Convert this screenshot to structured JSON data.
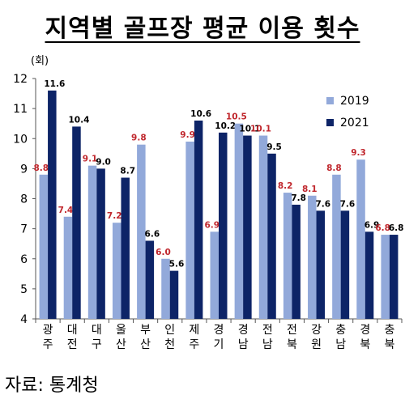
{
  "title": "지역별 골프장 평균 이용 횟수",
  "source": "자료: 통계청",
  "colors": {
    "s2019": "#92A9DA",
    "s2021": "#0D2467",
    "label2019": "#C0272D",
    "label2021": "#000000"
  },
  "chart_data": {
    "type": "bar",
    "unit_label": "(회)",
    "categories": [
      [
        "광",
        "주"
      ],
      [
        "대",
        "전"
      ],
      [
        "대",
        "구"
      ],
      [
        "울",
        "산"
      ],
      [
        "부",
        "산"
      ],
      [
        "인",
        "천"
      ],
      [
        "제",
        "주"
      ],
      [
        "경",
        "기"
      ],
      [
        "경",
        "남"
      ],
      [
        "전",
        "남"
      ],
      [
        "전",
        "북"
      ],
      [
        "강",
        "원"
      ],
      [
        "충",
        "남"
      ],
      [
        "경",
        "북"
      ],
      [
        "충",
        "북"
      ]
    ],
    "series": [
      {
        "name": "2019",
        "values": [
          8.8,
          7.4,
          9.1,
          7.2,
          9.8,
          6.0,
          9.9,
          6.9,
          10.5,
          10.1,
          8.2,
          8.1,
          8.8,
          9.3,
          6.8
        ]
      },
      {
        "name": "2021",
        "values": [
          11.6,
          10.4,
          9.0,
          8.7,
          6.6,
          5.6,
          10.6,
          10.2,
          10.1,
          9.5,
          7.8,
          7.6,
          7.6,
          6.9,
          6.8
        ]
      }
    ],
    "data_labels": [
      [
        "8.8",
        "7.4",
        "9.1",
        "7.2",
        "9.8",
        "6.0",
        "9.9",
        "6.9",
        "10.5",
        "10.1",
        "8.2",
        "8.1",
        "8.8",
        "9.3",
        "6.8"
      ],
      [
        "11.6",
        "10.4",
        "9.0",
        "8.7",
        "6.6",
        "5.6",
        "10.6",
        "10.2",
        "10.1",
        "9.5",
        "7.8",
        "7.6",
        "7.6",
        "6.9",
        "6.8"
      ]
    ],
    "yticks": [
      "4",
      "5",
      "6",
      "7",
      "8",
      "9",
      "10",
      "11",
      "12"
    ],
    "ylim": [
      4,
      12
    ],
    "grid": false,
    "legend_position": "top-right"
  }
}
